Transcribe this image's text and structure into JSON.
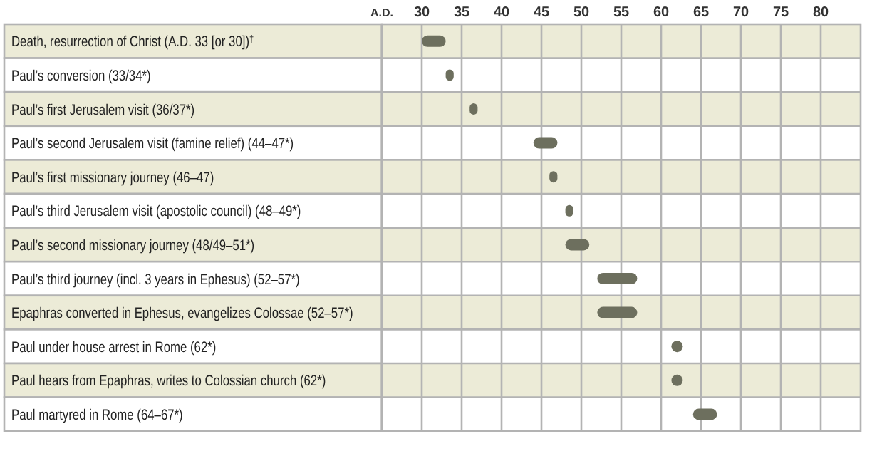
{
  "chart_data": {
    "type": "bar",
    "orientation": "horizontal",
    "categories": [
      "Death, resurrection of Christ (A.D. 33 [or 30])$^{†}$",
      "Paul’s conversion (33/34*)",
      "Paul’s first Jerusalem visit (36/37*)",
      "Paul’s second Jerusalem visit (famine relief) (44–47*)",
      "Paul’s first missionary journey (46–47)",
      "Paul’s third Jerusalem visit (apostolic council) (48–49*)",
      "Paul’s second missionary journey (48/49–51*)",
      "Paul’s third journey (incl. 3 years in Ephesus) (52–57*)",
      "Epaphras converted in Ephesus, evangelizes Colossae (52–57*)",
      "Paul under house arrest in Rome (62*)",
      "Paul hears from Epaphras, writes to Colossian church (62*)",
      "Paul martyred in Rome (64–67*)"
    ],
    "series": [
      {
        "type": "bar",
        "color": "#6d6f5e",
        "base": [
          30,
          33,
          36,
          44,
          46,
          48,
          48,
          52,
          52,
          null,
          null,
          64
        ],
        "values": [
          3,
          1,
          1,
          3,
          1,
          1,
          3,
          5,
          5,
          null,
          null,
          3
        ]
      },
      {
        "type": "scatter",
        "color": "#6d6f5e",
        "values": [
          null,
          null,
          null,
          null,
          null,
          null,
          null,
          null,
          null,
          62,
          62,
          null
        ]
      }
    ],
    "marker": "circle",
    "xlim": [
      25,
      85
    ],
    "xticks": [
      {
        "value": 25,
        "label": "A.D."
      },
      30,
      35,
      40,
      45,
      50,
      55,
      60,
      65,
      70,
      75,
      80
    ],
    "grid": "x"
  }
}
